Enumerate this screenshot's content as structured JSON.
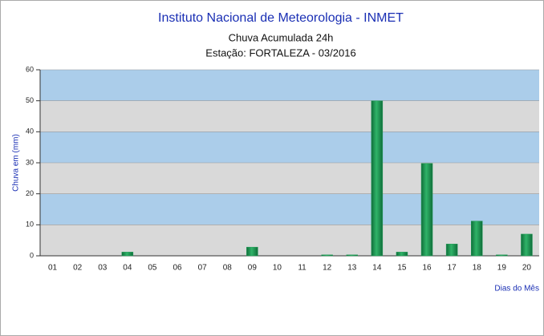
{
  "chart_data": {
    "type": "bar",
    "title": "Instituto Nacional de Meteorologia - INMET",
    "subtitle": [
      "Chuva Acumulada 24h",
      "Estação: FORTALEZA - 03/2016"
    ],
    "y_label": "Chuva em (mm)",
    "x_label": "Dias do Mês",
    "categories": [
      "01",
      "02",
      "03",
      "04",
      "05",
      "06",
      "07",
      "08",
      "09",
      "10",
      "11",
      "12",
      "13",
      "14",
      "15",
      "16",
      "17",
      "18",
      "19",
      "20"
    ],
    "values": [
      0,
      0,
      0,
      1.2,
      0,
      0,
      0,
      0,
      2.8,
      0,
      0,
      0.3,
      0.3,
      50,
      1.2,
      29.8,
      3.8,
      11.2,
      0.3,
      7
    ],
    "color": "#1e9b55",
    "ylim": [
      0,
      60
    ],
    "yticks": [
      0,
      10,
      20,
      30,
      40,
      50,
      60
    ],
    "band_colors": [
      "#d9d9d9",
      "#abcdea"
    ]
  }
}
